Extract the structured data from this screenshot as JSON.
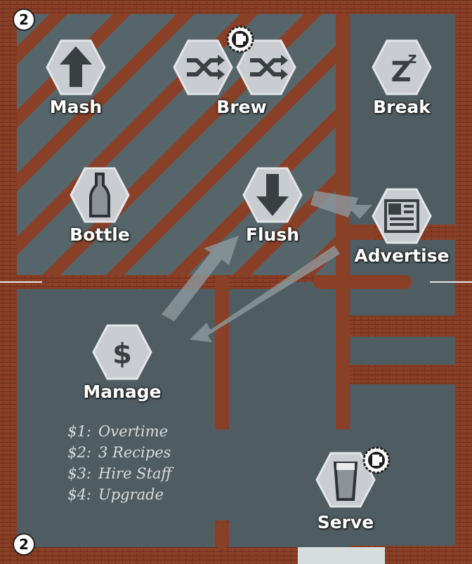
{
  "board": {
    "player_count_top": "2",
    "player_count_bottom": "2"
  },
  "actions": {
    "mash": {
      "label": "Mash",
      "icon": "arrow-up-icon"
    },
    "brew": {
      "label": "Brew",
      "icon": "shuffle-icon"
    },
    "break": {
      "label": "Break",
      "icon": "zz-sleep-icon"
    },
    "bottle": {
      "label": "Bottle",
      "icon": "bottle-icon"
    },
    "flush": {
      "label": "Flush",
      "icon": "arrow-down-icon"
    },
    "advertise": {
      "label": "Advertise",
      "icon": "newspaper-icon"
    },
    "manage": {
      "label": "Manage",
      "icon_text": "$"
    },
    "serve": {
      "label": "Serve",
      "icon": "beer-glass-icon"
    }
  },
  "manage_options": [
    {
      "cost": "$1:",
      "name": "Overtime"
    },
    {
      "cost": "$2:",
      "name": "3 Recipes"
    },
    {
      "cost": "$3:",
      "name": "Hire Staff"
    },
    {
      "cost": "$4:",
      "name": "Upgrade"
    }
  ],
  "colors": {
    "brick": "#8a3f27",
    "floor": "#4f5d62",
    "hex": "#c9ccd0",
    "text": "#ffffff"
  }
}
